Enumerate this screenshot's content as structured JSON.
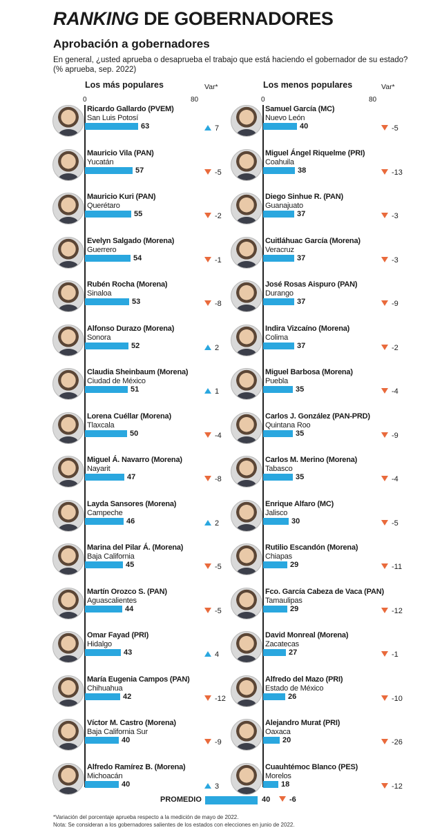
{
  "title_em": "RANKING",
  "title_rest": " DE GOBERNADORES",
  "subtitle": "Aprobación a gobernadores",
  "question_line1": "En general, ¿usted aprueba o desaprueba el trabajo que está haciendo el gobernador de su estado?",
  "question_line2": "(% aprueba, sep. 2022)",
  "left_header": "Los más populares",
  "right_header": "Los menos populares",
  "var_header": "Var*",
  "scale_min": "0",
  "scale_max": "80",
  "colors": {
    "bar": "#2aa7df",
    "up": "#2aa7df",
    "down": "#e96a3c"
  },
  "chart_data": [
    {
      "type": "bar",
      "title": "Los más populares",
      "xlim": [
        0,
        80
      ],
      "rows": [
        {
          "name": "Ricardo Gallardo (PVEM)",
          "state": "San Luis Potosí",
          "value": 63,
          "var": "7",
          "dir": "up"
        },
        {
          "name": "Mauricio Vila (PAN)",
          "state": "Yucatán",
          "value": 57,
          "var": "-5",
          "dir": "down"
        },
        {
          "name": "Mauricio Kuri (PAN)",
          "state": "Querétaro",
          "value": 55,
          "var": "-2",
          "dir": "down"
        },
        {
          "name": "Evelyn Salgado (Morena)",
          "state": "Guerrero",
          "value": 54,
          "var": "-1",
          "dir": "down"
        },
        {
          "name": "Rubén Rocha (Morena)",
          "state": "Sinaloa",
          "value": 53,
          "var": "-8",
          "dir": "down"
        },
        {
          "name": "Alfonso Durazo (Morena)",
          "state": "Sonora",
          "value": 52,
          "var": "2",
          "dir": "up"
        },
        {
          "name": "Claudia Sheinbaum (Morena)",
          "state": "Ciudad de México",
          "value": 51,
          "var": "1",
          "dir": "up"
        },
        {
          "name": "Lorena Cuéllar (Morena)",
          "state": "Tlaxcala",
          "value": 50,
          "var": "-4",
          "dir": "down"
        },
        {
          "name": "Miguel Á. Navarro (Morena)",
          "state": "Nayarit",
          "value": 47,
          "var": "-8",
          "dir": "down"
        },
        {
          "name": "Layda Sansores (Morena)",
          "state": "Campeche",
          "value": 46,
          "var": "2",
          "dir": "up"
        },
        {
          "name": "Marina del Pilar Á. (Morena)",
          "state": "Baja California",
          "value": 45,
          "var": "-5",
          "dir": "down"
        },
        {
          "name": "Martín Orozco S. (PAN)",
          "state": "Aguascalientes",
          "value": 44,
          "var": "-5",
          "dir": "down"
        },
        {
          "name": "Omar Fayad (PRI)",
          "state": "Hidalgo",
          "value": 43,
          "var": "4",
          "dir": "up"
        },
        {
          "name": "María Eugenia Campos (PAN)",
          "state": "Chihuahua",
          "value": 42,
          "var": "-12",
          "dir": "down"
        },
        {
          "name": "Víctor M. Castro (Morena)",
          "state": "Baja California Sur",
          "value": 40,
          "var": "-9",
          "dir": "down"
        },
        {
          "name": "Alfredo Ramírez B. (Morena)",
          "state": "Michoacán",
          "value": 40,
          "var": "3",
          "dir": "up"
        }
      ]
    },
    {
      "type": "bar",
      "title": "Los menos populares",
      "xlim": [
        0,
        80
      ],
      "rows": [
        {
          "name": "Samuel García (MC)",
          "state": "Nuevo León",
          "value": 40,
          "var": "-5",
          "dir": "down"
        },
        {
          "name": "Miguel Ángel Riquelme (PRI)",
          "state": "Coahuila",
          "value": 38,
          "var": "-13",
          "dir": "down"
        },
        {
          "name": "Diego Sinhue R. (PAN)",
          "state": "Guanajuato",
          "value": 37,
          "var": "-3",
          "dir": "down"
        },
        {
          "name": "Cuitláhuac García (Morena)",
          "state": "Veracruz",
          "value": 37,
          "var": "-3",
          "dir": "down"
        },
        {
          "name": "José Rosas Aispuro (PAN)",
          "state": "Durango",
          "value": 37,
          "var": "-9",
          "dir": "down"
        },
        {
          "name": "Indira Vizcaíno (Morena)",
          "state": "Colima",
          "value": 37,
          "var": "-2",
          "dir": "down"
        },
        {
          "name": "Miguel Barbosa (Morena)",
          "state": "Puebla",
          "value": 35,
          "var": "-4",
          "dir": "down"
        },
        {
          "name": "Carlos J. González (PAN-PRD)",
          "state": "Quintana Roo",
          "value": 35,
          "var": "-9",
          "dir": "down"
        },
        {
          "name": "Carlos M. Merino (Morena)",
          "state": "Tabasco",
          "value": 35,
          "var": "-4",
          "dir": "down"
        },
        {
          "name": "Enrique Alfaro (MC)",
          "state": "Jalisco",
          "value": 30,
          "var": "-5",
          "dir": "down"
        },
        {
          "name": "Rutilio Escandón (Morena)",
          "state": "Chiapas",
          "value": 29,
          "var": "-11",
          "dir": "down"
        },
        {
          "name": "Fco. García Cabeza de Vaca (PAN)",
          "state": "Tamaulipas",
          "value": 29,
          "var": "-12",
          "dir": "down"
        },
        {
          "name": "David Monreal (Morena)",
          "state": "Zacatecas",
          "value": 27,
          "var": "-1",
          "dir": "down"
        },
        {
          "name": "Alfredo del Mazo (PRI)",
          "state": "Estado de México",
          "value": 26,
          "var": "-10",
          "dir": "down"
        },
        {
          "name": "Alejandro Murat (PRI)",
          "state": "Oaxaca",
          "value": 20,
          "var": "-26",
          "dir": "down"
        },
        {
          "name": "Cuauhtémoc Blanco (PES)",
          "state": "Morelos",
          "value": 18,
          "var": "-12",
          "dir": "down"
        }
      ]
    }
  ],
  "average": {
    "label": "PROMEDIO",
    "value": "40",
    "var": "-6"
  },
  "footnote1": "*Variación del porcentaje aprueba respecto a la medición de mayo de 2022.",
  "footnote2": "Nota: Se consideran a los gobernadores salientes de los estados con elecciones en junio de 2022."
}
